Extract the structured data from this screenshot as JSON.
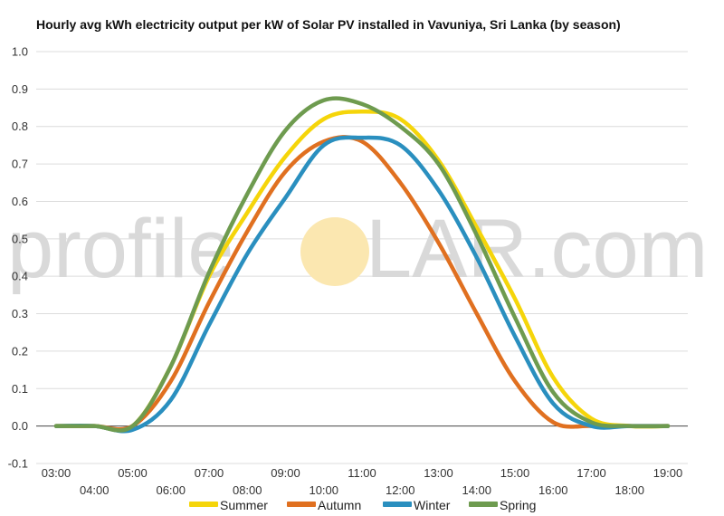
{
  "chart_data": {
    "type": "line",
    "title": "Hourly avg kWh electricity output per kW of Solar PV installed in Vavuniya, Sri Lanka (by season)",
    "xlabel": "",
    "ylabel": "",
    "ylim": [
      -0.1,
      1.0
    ],
    "yticks": [
      "1.0",
      "0.9",
      "0.8",
      "0.7",
      "0.6",
      "0.5",
      "0.4",
      "0.3",
      "0.2",
      "0.1",
      "0.0",
      "-0.1"
    ],
    "yticks_values": [
      1.0,
      0.9,
      0.8,
      0.7,
      0.6,
      0.5,
      0.4,
      0.3,
      0.2,
      0.1,
      0.0,
      -0.1
    ],
    "x_categories": [
      "03:00",
      "04:00",
      "05:00",
      "06:00",
      "07:00",
      "08:00",
      "09:00",
      "10:00",
      "11:00",
      "12:00",
      "13:00",
      "14:00",
      "15:00",
      "16:00",
      "17:00",
      "18:00",
      "19:00"
    ],
    "grid": true,
    "legend_position": "bottom",
    "series": [
      {
        "name": "Summer",
        "color": "#f5d50a",
        "values": [
          0.0,
          0.0,
          0.0,
          0.16,
          0.4,
          0.57,
          0.72,
          0.82,
          0.84,
          0.82,
          0.71,
          0.53,
          0.34,
          0.13,
          0.02,
          0.0,
          0.0
        ]
      },
      {
        "name": "Autumn",
        "color": "#e07020",
        "values": [
          0.0,
          0.0,
          0.0,
          0.12,
          0.33,
          0.52,
          0.68,
          0.76,
          0.76,
          0.65,
          0.49,
          0.3,
          0.12,
          0.01,
          0.0,
          0.0,
          0.0
        ]
      },
      {
        "name": "Winter",
        "color": "#2a8fbf",
        "values": [
          0.0,
          0.0,
          -0.01,
          0.07,
          0.27,
          0.46,
          0.61,
          0.75,
          0.77,
          0.75,
          0.63,
          0.45,
          0.24,
          0.06,
          0.0,
          0.0,
          0.0
        ]
      },
      {
        "name": "Spring",
        "color": "#6e9b4f",
        "values": [
          0.0,
          0.0,
          0.0,
          0.16,
          0.41,
          0.62,
          0.79,
          0.87,
          0.86,
          0.8,
          0.7,
          0.51,
          0.29,
          0.09,
          0.01,
          0.0,
          0.0
        ]
      }
    ]
  },
  "watermark": {
    "left_text": "profile",
    "right_text": "LAR.com",
    "sun_color": "#fbe7b0"
  }
}
